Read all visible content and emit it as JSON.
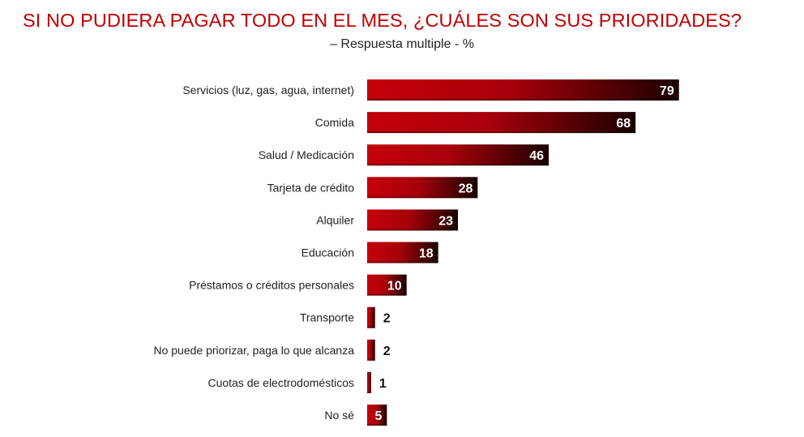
{
  "header": {
    "title": "SI NO PUDIERA PAGAR TODO EN EL MES, ¿CUÁLES SON SUS PRIORIDADES?",
    "subtitle": "– Respuesta multiple - %"
  },
  "colors": {
    "bar_start": "#c4000a",
    "bar_end": "#1a0000",
    "title": "#c00000"
  },
  "chart_data": {
    "type": "bar",
    "orientation": "horizontal",
    "title": "SI NO PUDIERA PAGAR TODO EN EL MES, ¿CUÁLES SON SUS PRIORIDADES?",
    "subtitle": "– Respuesta multiple - %",
    "categories": [
      "Servicios (luz, gas, agua, internet)",
      "Comida",
      "Salud / Medicación",
      "Tarjeta de crédito",
      "Alquiler",
      "Educación",
      "Préstamos o créditos personales",
      "Transporte",
      "No puede priorizar, paga lo que alcanza",
      "Cuotas de electrodomésticos",
      "No sé"
    ],
    "values": [
      79,
      68,
      46,
      28,
      23,
      18,
      10,
      2,
      2,
      1,
      5
    ],
    "value_labels": [
      "79",
      "68",
      "46",
      "28",
      "23",
      "18",
      "10",
      "2",
      "2",
      "1",
      "5"
    ],
    "xlim": [
      0,
      100
    ],
    "grid": false,
    "legend": "none"
  }
}
